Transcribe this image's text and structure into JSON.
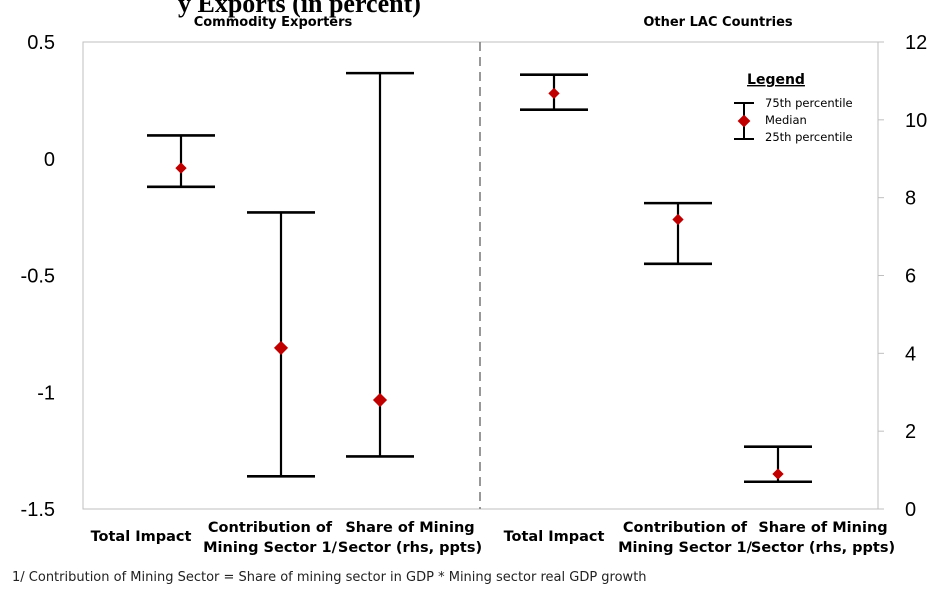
{
  "header": {
    "cut_title_fragment": "y Exports (in percent)"
  },
  "groups": [
    {
      "title": "Commodity Exporters"
    },
    {
      "title": "Other LAC Countries"
    }
  ],
  "legend": {
    "title": "Legend",
    "items": [
      "75th percentile",
      "Median",
      "25th percentile"
    ]
  },
  "footnote": "1/ Contribution of Mining Sector = Share of mining sector in GDP * Mining sector real GDP growth",
  "colors": {
    "median": "#c00000",
    "whisker": "#000000",
    "divider": "#7f7f7f",
    "axis": "#bfbfbf"
  },
  "chart_data": {
    "type": "error-bar (percentile range)",
    "y_left": {
      "range": [
        -1.5,
        0.5
      ],
      "ticks": [
        "0.5",
        "0",
        "-0.5",
        "-1",
        "-1.5"
      ],
      "tick_values": [
        0.5,
        0,
        -0.5,
        -1,
        -1.5
      ]
    },
    "y_right": {
      "range": [
        0,
        12
      ],
      "ticks": [
        "12",
        "10",
        "8",
        "6",
        "4",
        "2",
        "0"
      ],
      "tick_values": [
        12,
        10,
        8,
        6,
        4,
        2,
        0
      ]
    },
    "categories": [
      {
        "group": "Commodity Exporters",
        "label": [
          "Total Impact"
        ],
        "axis": "left",
        "p75": 0.1,
        "median": -0.04,
        "p25": -0.12
      },
      {
        "group": "Commodity Exporters",
        "label": [
          "Contribution of",
          "Mining Sector 1/"
        ],
        "axis": "left",
        "p75": -0.23,
        "median": -0.81,
        "p25": -1.36
      },
      {
        "group": "Commodity Exporters",
        "label": [
          "Share of Mining",
          "Sector (rhs, ppts)"
        ],
        "axis": "right",
        "p75": 11.2,
        "median": 2.8,
        "p25": 1.35
      },
      {
        "group": "Other LAC Countries",
        "label": [
          "Total Impact"
        ],
        "axis": "left",
        "p75": 0.36,
        "median": 0.28,
        "p25": 0.21
      },
      {
        "group": "Other LAC Countries",
        "label": [
          "Contribution of",
          "Mining Sector 1/"
        ],
        "axis": "left",
        "p75": -0.19,
        "median": -0.26,
        "p25": -0.45
      },
      {
        "group": "Other LAC Countries",
        "label": [
          "Share of Mining",
          "Sector (rhs, ppts)"
        ],
        "axis": "right",
        "p75": 1.6,
        "median": 0.9,
        "p25": 0.7
      }
    ]
  }
}
